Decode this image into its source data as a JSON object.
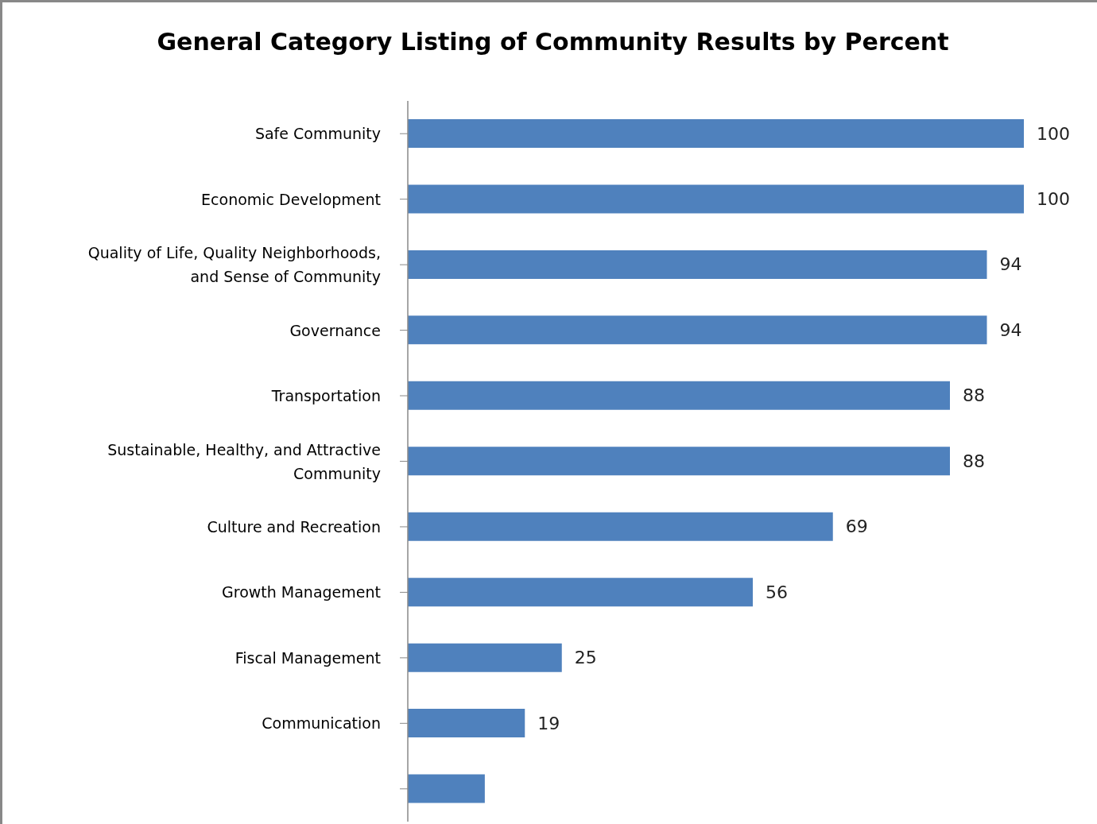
{
  "chart_data": {
    "type": "bar",
    "orientation": "horizontal",
    "title": "General Category Listing of Community Results by Percent",
    "categories": [
      "Safe Community",
      "Economic Development",
      "Quality of Life, Quality Neighborhoods, and Sense of Community",
      "Governance",
      "Transportation",
      "Sustainable, Healthy, and Attractive Community",
      "Culture and Recreation",
      "Growth Management",
      "Fiscal Management",
      "Communication",
      null
    ],
    "values": [
      100,
      100,
      94,
      94,
      88,
      88,
      69,
      56,
      25,
      19,
      12.5
    ],
    "value_labels": [
      "100",
      "100",
      "94",
      "94",
      "88",
      "88",
      "69",
      "56",
      "25",
      "19",
      null
    ],
    "color": "#4f81bd",
    "tick_labels": "y"
  }
}
